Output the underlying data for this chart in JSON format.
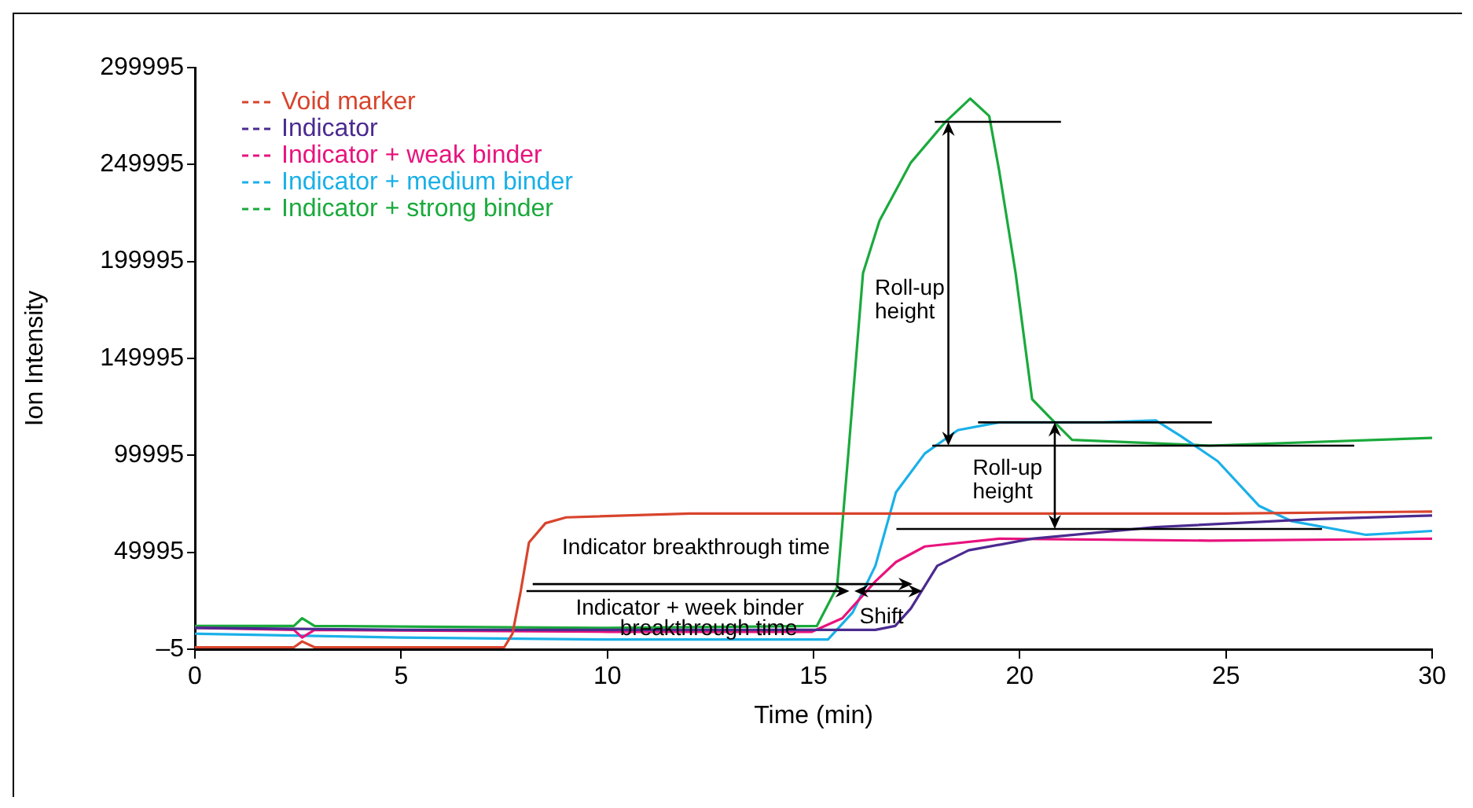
{
  "chart_data": {
    "type": "line",
    "xlabel": "Time (min)",
    "ylabel": "Ion Intensity",
    "xlim": [
      0,
      30
    ],
    "xticks": [
      0,
      5,
      10,
      15,
      20,
      25,
      30
    ],
    "ylim": [
      -5,
      299995
    ],
    "yticks": [
      {
        "value": -5,
        "label": "–5"
      },
      49995,
      99995,
      149995,
      199995,
      249995,
      299995
    ],
    "grid": false,
    "legend": "top left",
    "marker": "none",
    "line_style": "solid",
    "series": [
      {
        "name": "Void marker",
        "color": "#d8442c",
        "x": [
          0,
          2.4,
          2.6,
          2.9,
          7.5,
          7.7,
          7.9,
          8.1,
          8.5,
          9,
          12,
          20,
          25,
          30
        ],
        "values": [
          1000,
          1000,
          4000,
          1000,
          1000,
          8000,
          30000,
          55000,
          65000,
          68000,
          70000,
          70000,
          70000,
          71000
        ]
      },
      {
        "name": "Indicator",
        "color": "#4b2a90",
        "x": [
          0,
          5,
          10,
          15,
          16.5,
          16.98,
          17.36,
          18,
          18.76,
          20.3,
          23.3,
          27.1,
          30
        ],
        "values": [
          11000,
          10000,
          10000,
          10000,
          10000,
          12000,
          21000,
          43000,
          51000,
          57000,
          63000,
          67000,
          69000
        ]
      },
      {
        "name": "Indicator + weak binder",
        "color": "#e8137d",
        "x": [
          0,
          2.4,
          2.6,
          2.9,
          10,
          14.96,
          15.7,
          16.5,
          17,
          17.7,
          19.5,
          24.6,
          30
        ],
        "values": [
          11000,
          10000,
          6000,
          10000,
          9000,
          9000,
          16000,
          35000,
          45000,
          53000,
          57000,
          56000,
          57000
        ]
      },
      {
        "name": "Indicator + medium binder",
        "color": "#1ab0e8",
        "x": [
          0,
          5,
          10,
          15.35,
          15.95,
          16.5,
          17,
          17.7,
          18.5,
          19.5,
          22,
          23.3,
          23.9,
          24.8,
          25.8,
          26.6,
          28.4,
          30
        ],
        "values": [
          8000,
          6000,
          5000,
          5000,
          19000,
          43000,
          81000,
          101000,
          113000,
          117000,
          117000,
          118000,
          110000,
          97000,
          74000,
          66000,
          59000,
          61000
        ]
      },
      {
        "name": "Indicator + strong binder",
        "color": "#1aaa3c",
        "x": [
          0,
          2.4,
          2.6,
          2.9,
          10,
          15.08,
          15.57,
          15.84,
          16.2,
          16.6,
          17.36,
          18.2,
          18.8,
          19.26,
          19.5,
          19.9,
          20.3,
          20.8,
          21.27,
          24.6,
          30
        ],
        "values": [
          12000,
          12000,
          16000,
          12000,
          11000,
          12000,
          32000,
          100000,
          194000,
          221000,
          251000,
          272000,
          284000,
          275000,
          247000,
          194000,
          129000,
          118000,
          108000,
          105000,
          109000
        ]
      }
    ],
    "ref_lines": [
      {
        "axis": "y",
        "value": 272000
      },
      {
        "axis": "y",
        "value": 105000
      },
      {
        "axis": "y",
        "value": 117000
      },
      {
        "axis": "y",
        "value": 62000
      }
    ],
    "annotations": [
      "Indicator breakthrough time",
      "Indicator + week binder\nbreakthrough time",
      "Shift",
      "Roll-up\nheight",
      "Roll-up\nheight"
    ]
  }
}
